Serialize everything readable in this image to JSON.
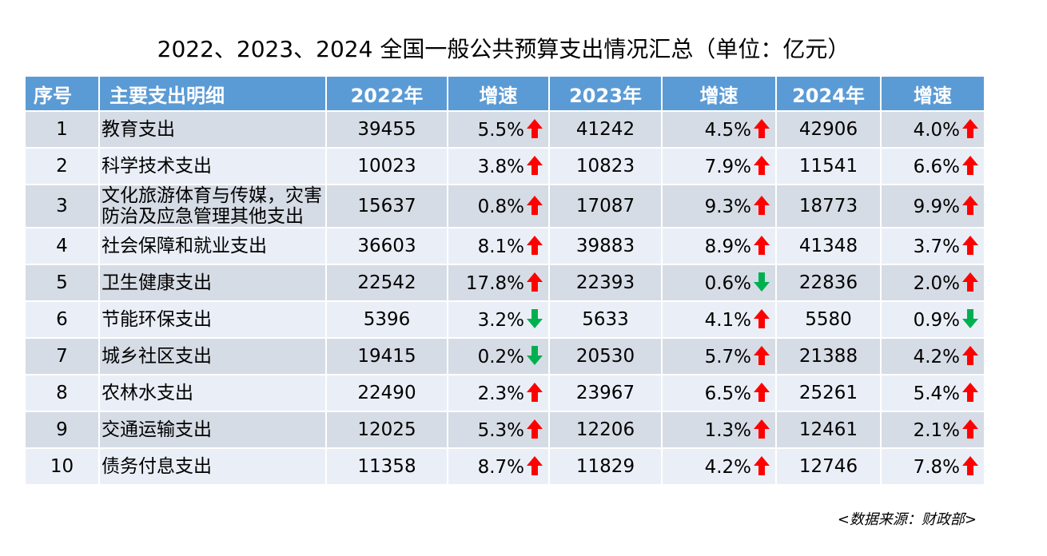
{
  "title": "2022、2023、2024 全国一般公共预算支出情况汇总（单位：亿元）",
  "colors": {
    "header_bg": "#5b9bd5",
    "row_odd": "#d6dce5",
    "row_even": "#eaeff7",
    "up": "#ff0000",
    "down": "#00b050"
  },
  "headers": [
    "序号",
    "主要支出明细",
    "2022年",
    "增速",
    "2023年",
    "增速",
    "2024年",
    "增速"
  ],
  "rows": [
    {
      "no": "1",
      "name": "教育支出",
      "v2022": "39455",
      "g2022": "5.5%",
      "d2022": "up",
      "v2023": "41242",
      "g2023": "4.5%",
      "d2023": "up",
      "v2024": "42906",
      "g2024": "4.0%",
      "d2024": "up"
    },
    {
      "no": "2",
      "name": "科学技术支出",
      "v2022": "10023",
      "g2022": "3.8%",
      "d2022": "up",
      "v2023": "10823",
      "g2023": "7.9%",
      "d2023": "up",
      "v2024": "11541",
      "g2024": "6.6%",
      "d2024": "up"
    },
    {
      "no": "3",
      "name_line1": "文化旅游体育与传媒，灾害",
      "name_line2": "防治及应急管理其他支出",
      "v2022": "15637",
      "g2022": "0.8%",
      "d2022": "up",
      "v2023": "17087",
      "g2023": "9.3%",
      "d2023": "up",
      "v2024": "18773",
      "g2024": "9.9%",
      "d2024": "up"
    },
    {
      "no": "4",
      "name": "社会保障和就业支出",
      "v2022": "36603",
      "g2022": "8.1%",
      "d2022": "up",
      "v2023": "39883",
      "g2023": "8.9%",
      "d2023": "up",
      "v2024": "41348",
      "g2024": "3.7%",
      "d2024": "up"
    },
    {
      "no": "5",
      "name": "卫生健康支出",
      "v2022": "22542",
      "g2022": "17.8%",
      "d2022": "up",
      "v2023": "22393",
      "g2023": "0.6%",
      "d2023": "down",
      "v2024": "22836",
      "g2024": "2.0%",
      "d2024": "up"
    },
    {
      "no": "6",
      "name": "节能环保支出",
      "v2022": "5396",
      "g2022": "3.2%",
      "d2022": "down",
      "v2023": "5633",
      "g2023": "4.1%",
      "d2023": "up",
      "v2024": "5580",
      "g2024": "0.9%",
      "d2024": "down"
    },
    {
      "no": "7",
      "name": "城乡社区支出",
      "v2022": "19415",
      "g2022": "0.2%",
      "d2022": "down",
      "v2023": "20530",
      "g2023": "5.7%",
      "d2023": "up",
      "v2024": "21388",
      "g2024": "4.2%",
      "d2024": "up"
    },
    {
      "no": "8",
      "name": "农林水支出",
      "v2022": "22490",
      "g2022": "2.3%",
      "d2022": "up",
      "v2023": "23967",
      "g2023": "6.5%",
      "d2023": "up",
      "v2024": "25261",
      "g2024": "5.4%",
      "d2024": "up"
    },
    {
      "no": "9",
      "name": "交通运输支出",
      "v2022": "12025",
      "g2022": "5.3%",
      "d2022": "up",
      "v2023": "12206",
      "g2023": "1.3%",
      "d2023": "up",
      "v2024": "12461",
      "g2024": "2.1%",
      "d2024": "up"
    },
    {
      "no": "10",
      "name": "债务付息支出",
      "v2022": "11358",
      "g2022": "8.7%",
      "d2022": "up",
      "v2023": "11829",
      "g2023": "4.2%",
      "d2023": "up",
      "v2024": "12746",
      "g2024": "7.8%",
      "d2024": "up"
    }
  ],
  "source": "<数据来源：财政部>"
}
